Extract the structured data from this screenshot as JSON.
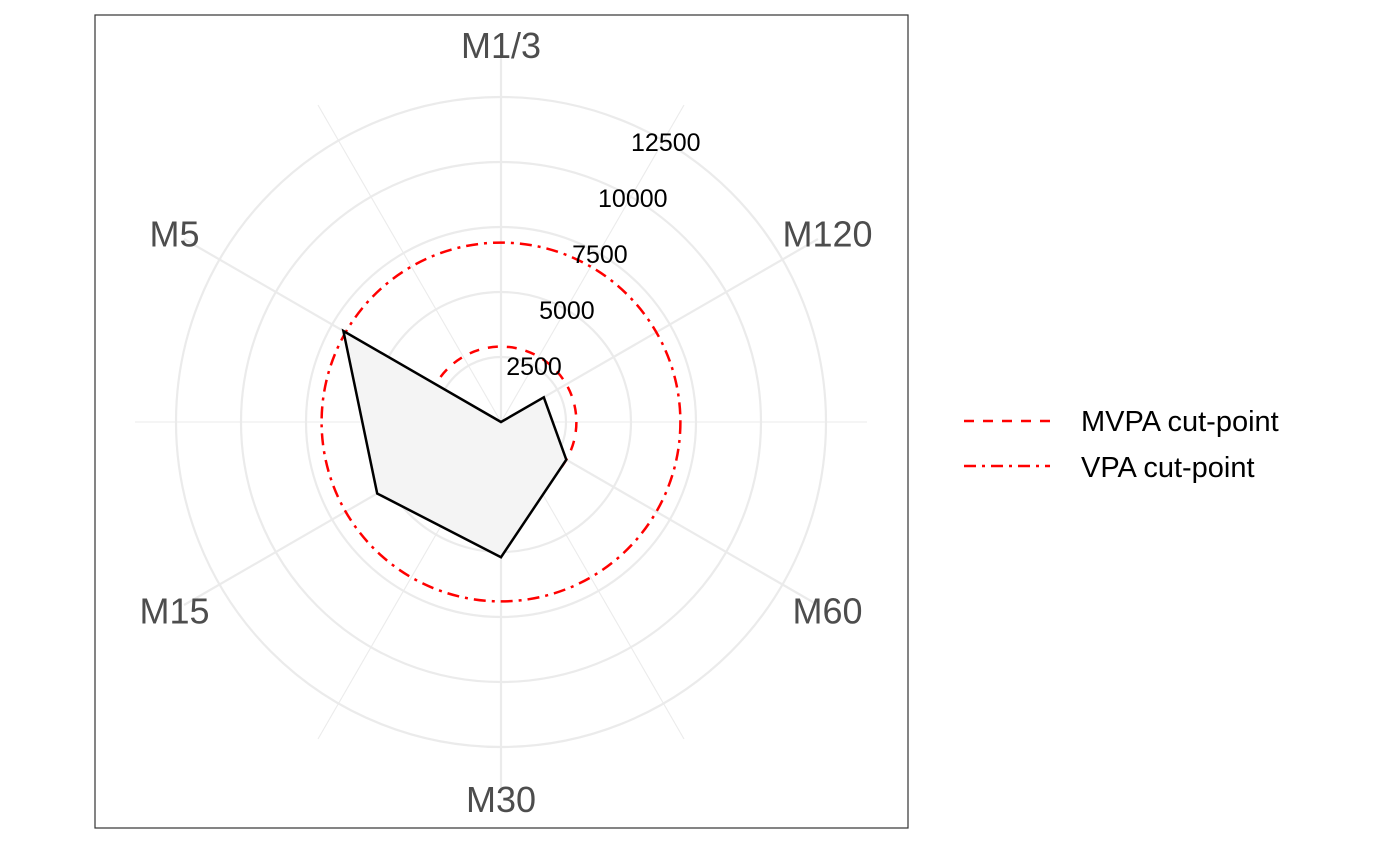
{
  "chart_data": {
    "type": "radar",
    "title": "",
    "categories": [
      "M1/3",
      "M120",
      "M60",
      "M30",
      "M15",
      "M5"
    ],
    "r_ticks": [
      2500,
      5000,
      7500,
      10000,
      12500
    ],
    "r_range": [
      0,
      14000
    ],
    "grid": true,
    "series": [
      {
        "values": [
          0,
          1900,
          2900,
          5200,
          5500,
          7000
        ],
        "line_color": "#000000",
        "fill_color": "#f4f4f4"
      }
    ],
    "reference_lines": [
      {
        "name": "MVPA cut-point",
        "value": 2900,
        "style": "dashed",
        "color": "#ff0000"
      },
      {
        "name": "VPA cut-point",
        "value": 6900,
        "style": "dashdot",
        "color": "#ff0000"
      }
    ],
    "legend": {
      "position": "right"
    }
  }
}
